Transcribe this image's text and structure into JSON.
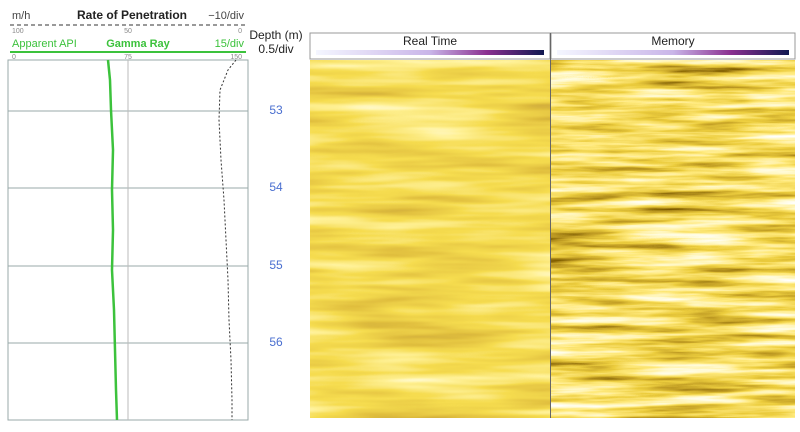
{
  "rop": {
    "unit": "m/h",
    "title": "Rate of Penetration",
    "scale": "−10/div",
    "ticks": [
      "100",
      "50",
      "0"
    ]
  },
  "gamma": {
    "unit": "Apparent API",
    "title": "Gamma Ray",
    "scale": "15/div",
    "ticks": [
      "0",
      "75",
      "150"
    ]
  },
  "depth": {
    "title": "Depth (m)",
    "scale": "0.5/div",
    "labels": [
      "53",
      "54",
      "55",
      "56"
    ]
  },
  "tracks": [
    "Real Time",
    "Memory"
  ]
}
